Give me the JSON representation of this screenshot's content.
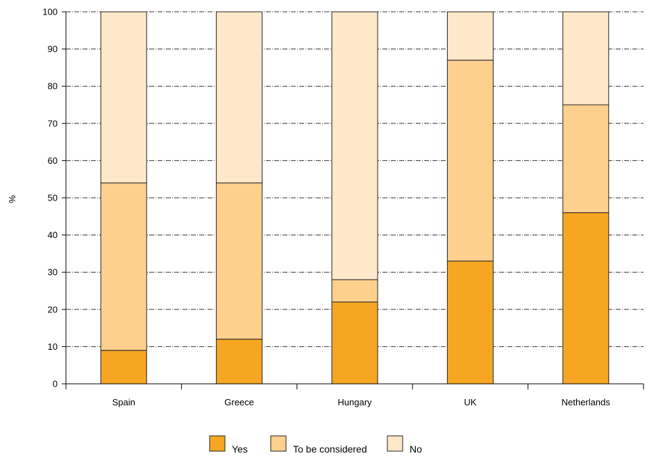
{
  "chart_data": {
    "type": "bar",
    "stacked": true,
    "categories": [
      "Spain",
      "Greece",
      "Hungary",
      "UK",
      "Netherlands"
    ],
    "series": [
      {
        "name": "Yes",
        "values": [
          9,
          12,
          22,
          33,
          46
        ],
        "color": "#F7A623"
      },
      {
        "name": "To be considered",
        "values": [
          45,
          42,
          6,
          54,
          29
        ],
        "color": "#FDD08E"
      },
      {
        "name": "No",
        "values": [
          46,
          46,
          72,
          13,
          25
        ],
        "color": "#FFE8C9"
      }
    ],
    "ylabel": "%",
    "ylim": [
      0,
      100
    ],
    "yticks": [
      0,
      10,
      20,
      30,
      40,
      50,
      60,
      70,
      80,
      90,
      100
    ],
    "grid": true,
    "legend_position": "bottom"
  }
}
